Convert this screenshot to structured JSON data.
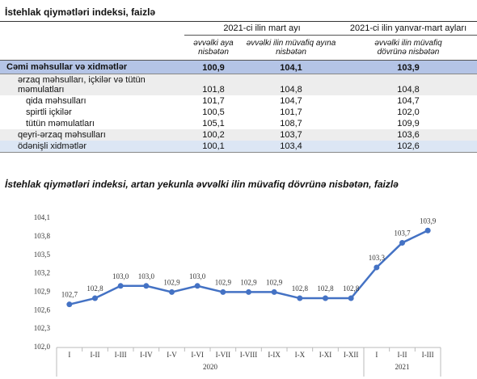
{
  "header": {
    "title": "İstehlak qiymətləri indeksi, faizlə"
  },
  "table": {
    "column_groups": [
      "2021-ci ilin mart ayı",
      "2021-ci ilin yanvar-mart ayları"
    ],
    "columns": [
      "əvvəlki aya nisbətən",
      "əvvəlki ilin müvafiq ayına nisbətən",
      "əvvəlki ilin müvafiq dövrünə nisbətən"
    ],
    "rows": [
      [
        "Cəmi məhsullar və xidmətlər",
        "100,9",
        "104,1",
        "103,9"
      ],
      [
        "ərzaq məhsulları, içkilər və tütün məmulatları",
        "101,8",
        "104,8",
        "104,8"
      ],
      [
        "qida məhsulları",
        "101,7",
        "104,7",
        "104,7"
      ],
      [
        "spirtli içkilər",
        "100,5",
        "101,7",
        "102,0"
      ],
      [
        "tütün məmulatları",
        "105,1",
        "108,7",
        "109,9"
      ],
      [
        "qeyri-ərzaq məhsulları",
        "100,2",
        "103,7",
        "103,6"
      ],
      [
        "ödənişli xidmətlər",
        "100,1",
        "103,4",
        "102,6"
      ]
    ]
  },
  "chart_data": {
    "type": "line",
    "title": "İstehlak qiymətləri indeksi, artan yekunla əvvəlki ilin müvafiq dövrünə nisbətən, faizlə",
    "categories": [
      "I",
      "I-II",
      "I-III",
      "I-IV",
      "I-V",
      "I-VI",
      "I-VII",
      "I-VIII",
      "I-IX",
      "I-X",
      "I-XI",
      "I-XII",
      "I",
      "I-II",
      "I-III"
    ],
    "groups": [
      "2020",
      "2021"
    ],
    "values": [
      102.7,
      102.8,
      103.0,
      103.0,
      102.9,
      103.0,
      102.9,
      102.9,
      102.9,
      102.8,
      102.8,
      102.8,
      103.3,
      103.7,
      103.9
    ],
    "value_labels": [
      "102,7",
      "102,8",
      "103,0",
      "103,0",
      "102,9",
      "103,0",
      "102,9",
      "102,9",
      "102,9",
      "102,8",
      "102,8",
      "102,8",
      "103,3",
      "103,7",
      "103,9"
    ],
    "color": "#4472c4",
    "ylim": [
      102.0,
      104.1
    ],
    "yticks": [
      {
        "value": 102.0,
        "label": "102,0"
      },
      {
        "value": 102.3,
        "label": "102,3"
      },
      {
        "value": 102.6,
        "label": "102,6"
      },
      {
        "value": 102.9,
        "label": "102,9"
      },
      {
        "value": 103.2,
        "label": "103,2"
      },
      {
        "value": 103.5,
        "label": "103,5"
      },
      {
        "value": 103.8,
        "label": "103,8"
      },
      {
        "value": 104.1,
        "label": "104,1"
      }
    ]
  }
}
